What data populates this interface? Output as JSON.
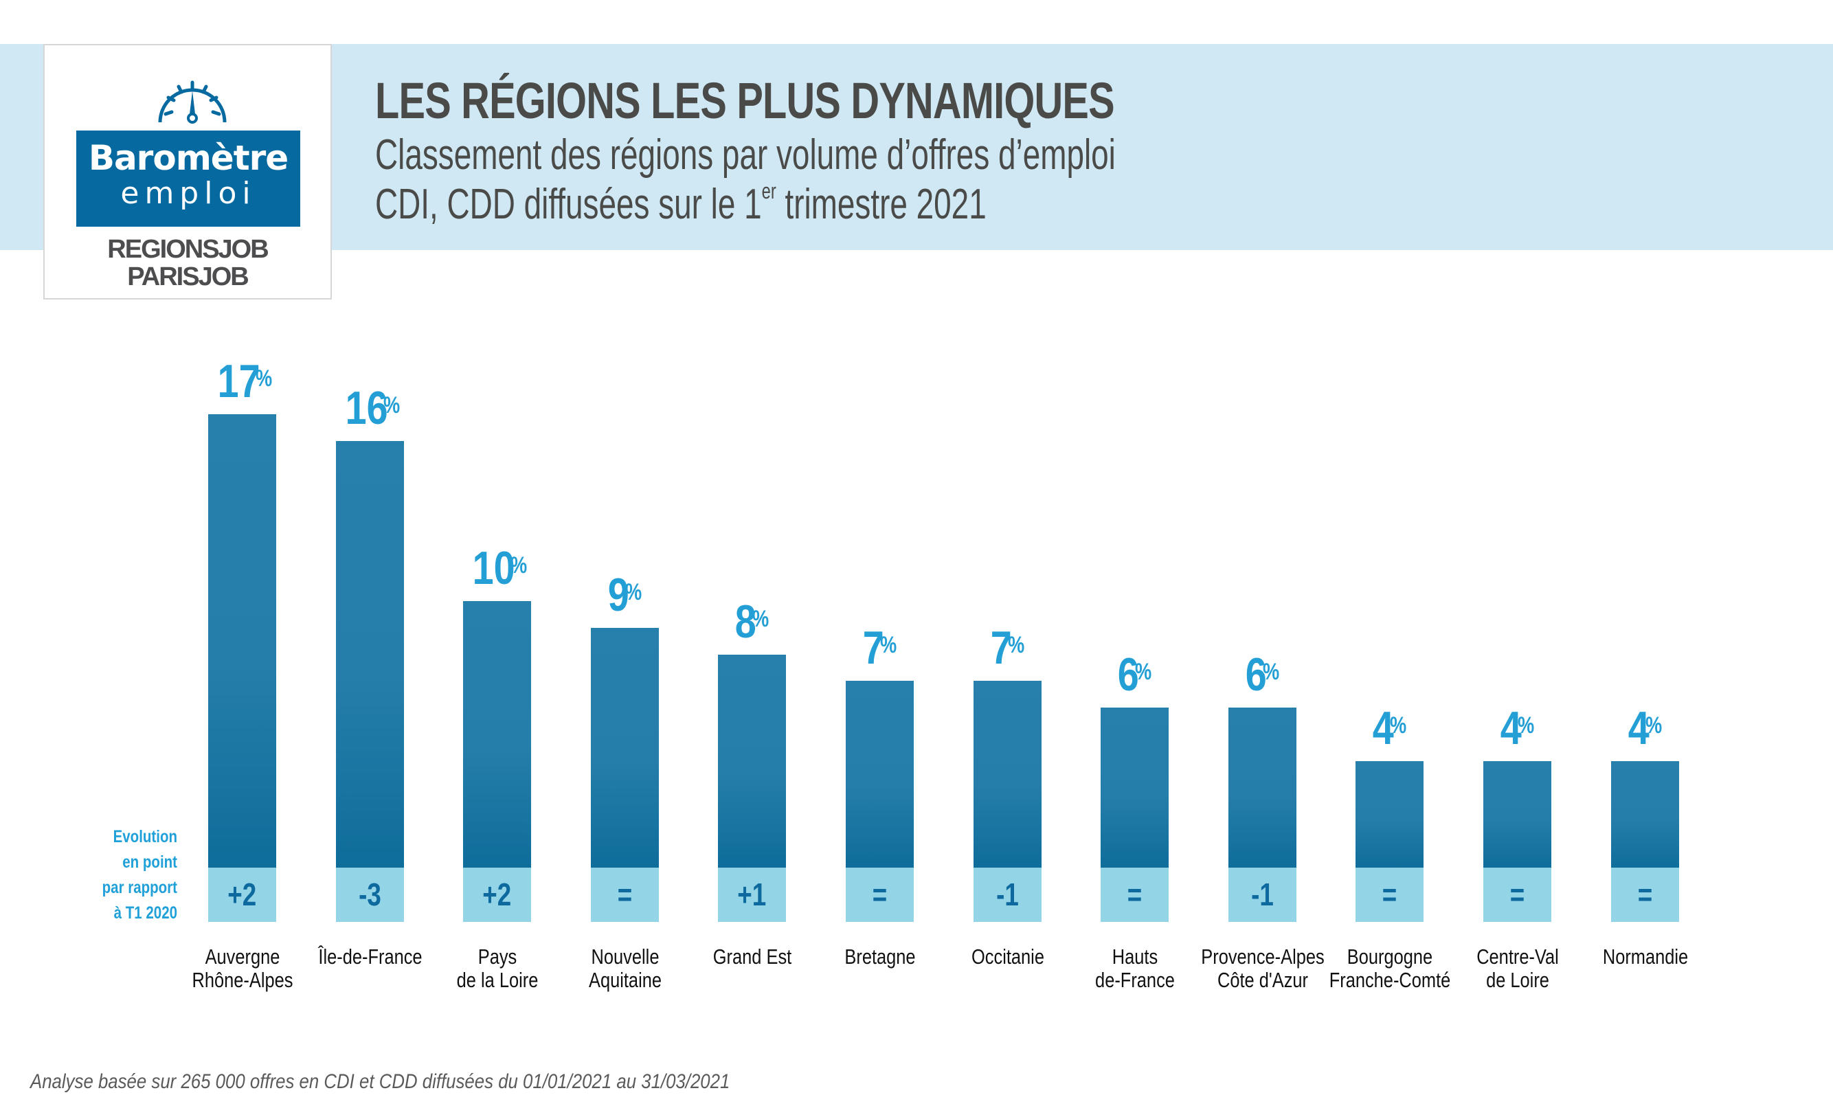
{
  "header": {
    "title": "LES RÉGIONS LES PLUS DYNAMIQUES",
    "subtitle_line1": "Classement des régions par volume d’offres d’emploi",
    "subtitle_line2_pre": "CDI, CDD diffusées sur le 1",
    "subtitle_line2_sup": "er",
    "subtitle_line2_post": " trimestre 2021"
  },
  "logo": {
    "icon": "gauge-icon",
    "line1": "Baromètre",
    "line2": "emploi",
    "brand1": "REGIONSJOB",
    "brand2": "PARISJOB"
  },
  "colors": {
    "band": "#cfe8f3",
    "bar": "#257ea9",
    "evolution_box": "#93d4e7",
    "evolution_text": "#0e6a9e",
    "value_label": "#239fd6",
    "title": "#4a4a49"
  },
  "evolution_label": [
    "Evolution",
    "en point",
    "par rapport",
    "à T1 2020"
  ],
  "chart_data": {
    "type": "bar",
    "title": "LES RÉGIONS LES PLUS DYNAMIQUES",
    "subtitle": "Classement des régions par volume d’offres d’emploi CDI, CDD diffusées sur le 1er trimestre 2021",
    "xlabel": "",
    "ylabel": "",
    "unit": "%",
    "ylim": [
      0,
      17
    ],
    "grid": false,
    "categories": [
      [
        "Auvergne",
        "Rhône-Alpes"
      ],
      [
        "Île-de-France"
      ],
      [
        "Pays",
        "de la Loire"
      ],
      [
        "Nouvelle",
        "Aquitaine"
      ],
      [
        "Grand Est"
      ],
      [
        "Bretagne"
      ],
      [
        "Occitanie"
      ],
      [
        "Hauts",
        "de-France"
      ],
      [
        "Provence-Alpes",
        "Côte d'Azur"
      ],
      [
        "Bourgogne",
        "Franche-Comté"
      ],
      [
        "Centre-Val",
        "de Loire"
      ],
      [
        "Normandie"
      ]
    ],
    "values": [
      17,
      16,
      10,
      9,
      8,
      7,
      7,
      6,
      6,
      4,
      4,
      4
    ],
    "evolution_points_vs_T1_2020": [
      "+2",
      "-3",
      "+2",
      "=",
      "+1",
      "=",
      "-1",
      "=",
      "-1",
      "=",
      "=",
      "="
    ]
  },
  "footnote": "Analyse basée sur 265 000 offres en CDI et CDD diffusées du 01/01/2021 au 31/03/2021"
}
